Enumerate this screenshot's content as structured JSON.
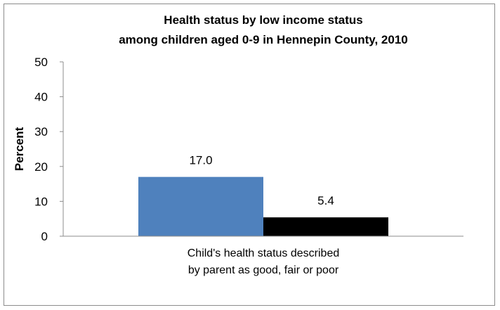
{
  "chart_data": {
    "type": "bar",
    "title": [
      "Health status by low income status",
      "among children aged 0-9 in Hennepin County, 2010"
    ],
    "ylabel": "Percent",
    "xlabel": "",
    "ylim": [
      0,
      50
    ],
    "yticks": [
      0,
      10,
      20,
      30,
      40,
      50
    ],
    "grid": false,
    "categories": [
      "Child's health status described by parent as good, fair or poor"
    ],
    "category_label_lines": [
      "Child's health status described",
      "by parent as good, fair or poor"
    ],
    "series": [
      {
        "values": [
          17.0
        ],
        "labels": [
          "17.0"
        ],
        "color": "#4f81bd"
      },
      {
        "values": [
          5.4
        ],
        "labels": [
          "5.4"
        ],
        "color": "#000000"
      }
    ]
  }
}
